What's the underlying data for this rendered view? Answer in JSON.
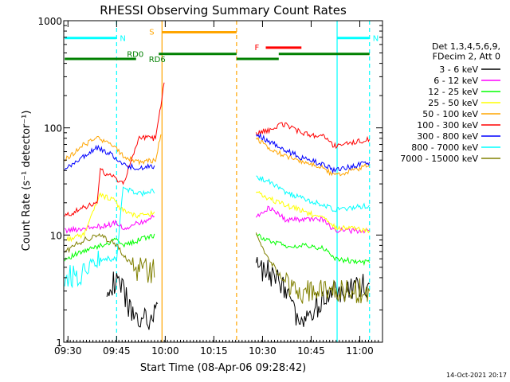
{
  "chart_data": {
    "type": "line",
    "title": "RHESSI Observing Summary Count Rates",
    "xlabel": "Start Time (08-Apr-06 09:28:42)",
    "ylabel": "Count Rate (s⁻¹ detector⁻¹)",
    "yscale": "log",
    "ylim": [
      1,
      1000
    ],
    "xlim": [
      "09:28:42",
      "11:07"
    ],
    "x_ticks": [
      "09:30",
      "09:45",
      "10:00",
      "10:15",
      "10:30",
      "10:45",
      "11:00"
    ],
    "y_ticks": [
      "1",
      "10",
      "100",
      "1000"
    ],
    "legend_position": "right",
    "legend_header": [
      "Det 1,3,4,5,6,9,",
      "FDecim 2, Att 0"
    ],
    "footer": "14-Oct-2021 20:17",
    "data_gap": [
      "10:22",
      "10:28"
    ],
    "series": [
      {
        "name": "3 - 6 keV",
        "color": "#000000",
        "x": [
          "09:42",
          "09:46",
          "09:50",
          "09:55",
          "09:58",
          "10:28",
          "10:32",
          "10:37",
          "10:42",
          "10:49",
          "10:56",
          "11:03"
        ],
        "values": [
          3.5,
          3.5,
          1.8,
          1.5,
          2.0,
          5.0,
          4.5,
          3.0,
          1.3,
          2.8,
          3.0,
          3.5
        ]
      },
      {
        "name": "6 - 12 keV",
        "color": "#ff00ff",
        "x": [
          "09:29",
          "09:40",
          "09:45",
          "09:47",
          "09:52",
          "09:57",
          "10:28",
          "10:32",
          "10:37",
          "10:42",
          "10:49",
          "10:52",
          "11:03"
        ],
        "values": [
          11,
          12,
          13,
          11.5,
          13,
          15,
          15,
          18,
          14,
          14,
          14,
          11,
          11
        ]
      },
      {
        "name": "12 - 25 keV",
        "color": "#00ff00",
        "x": [
          "09:29",
          "09:40",
          "09:45",
          "09:47",
          "09:52",
          "09:57",
          "10:28",
          "10:32",
          "10:37",
          "10:42",
          "10:49",
          "10:52",
          "11:03"
        ],
        "values": [
          6,
          8,
          9,
          8,
          9,
          10,
          10,
          9,
          8,
          8,
          7.5,
          6,
          5.5
        ]
      },
      {
        "name": "25 - 50 keV",
        "color": "#ffff00",
        "x": [
          "09:29",
          "09:35",
          "09:40",
          "09:44",
          "09:47",
          "09:52",
          "09:57",
          "10:28",
          "10:32",
          "10:37",
          "10:42",
          "10:49",
          "10:52",
          "11:03"
        ],
        "values": [
          9,
          10,
          24,
          21,
          17,
          15,
          16,
          25,
          22,
          19,
          17,
          14,
          12,
          11
        ]
      },
      {
        "name": "50 - 100 keV",
        "color": "#ffa500",
        "x": [
          "09:29",
          "09:35",
          "09:39",
          "09:44",
          "09:47",
          "09:52",
          "09:57",
          "09:59",
          "10:28",
          "10:32",
          "10:37",
          "10:42",
          "10:49",
          "10:52",
          "11:03"
        ],
        "values": [
          50,
          70,
          80,
          68,
          55,
          48,
          50,
          100,
          80,
          65,
          55,
          48,
          42,
          36,
          45
        ]
      },
      {
        "name": "100 - 300 keV",
        "color": "#ff0000",
        "x": [
          "09:29",
          "09:35",
          "09:39",
          "09:40",
          "09:44",
          "09:47",
          "09:52",
          "09:57",
          "10:00",
          "10:28",
          "10:32",
          "10:36",
          "10:42",
          "10:49",
          "10:52",
          "11:03"
        ],
        "values": [
          15,
          18,
          20,
          40,
          35,
          30,
          80,
          80,
          300,
          90,
          95,
          110,
          90,
          82,
          68,
          78
        ]
      },
      {
        "name": "300 - 800 keV",
        "color": "#0000ff",
        "x": [
          "09:29",
          "09:35",
          "09:39",
          "09:44",
          "09:47",
          "09:52",
          "09:57",
          "10:28",
          "10:32",
          "10:37",
          "10:42",
          "10:49",
          "10:52",
          "11:03"
        ],
        "values": [
          40,
          55,
          65,
          55,
          45,
          42,
          44,
          88,
          75,
          62,
          53,
          45,
          40,
          48
        ]
      },
      {
        "name": "800 - 7000 keV",
        "color": "#00ffff",
        "x": [
          "09:29",
          "09:35",
          "09:40",
          "09:45",
          "09:47",
          "09:52",
          "09:57",
          "10:28",
          "10:32",
          "10:37",
          "10:42",
          "10:49",
          "10:52",
          "11:03"
        ],
        "values": [
          4,
          4.5,
          6,
          6,
          28,
          24,
          26,
          35,
          32,
          25,
          22,
          19,
          17,
          19
        ]
      },
      {
        "name": "7000 - 15000 keV",
        "color": "#808000",
        "x": [
          "09:29",
          "09:35",
          "09:40",
          "09:45",
          "09:50",
          "09:57",
          "10:28",
          "10:32",
          "10:37",
          "10:42",
          "10:49",
          "10:52",
          "11:03"
        ],
        "values": [
          7,
          9,
          10,
          8,
          5,
          4.5,
          10,
          6,
          3.5,
          3,
          3,
          3,
          3
        ]
      }
    ],
    "markers": [
      {
        "label": "N",
        "color": "#00ffff",
        "from": "09:29",
        "to": "09:45",
        "level": 690
      },
      {
        "label": "N",
        "color": "#00ffff",
        "from": "10:53",
        "to": "11:03",
        "level": 690
      },
      {
        "label": "S",
        "color": "#ffa500",
        "from": "09:59",
        "to": "10:22",
        "level": 780
      },
      {
        "label": "F",
        "color": "#ff0000",
        "from": "10:31",
        "to": "10:42",
        "level": 560
      },
      {
        "label": "RD0",
        "color": "#008000",
        "from": "09:58",
        "to": "10:22",
        "level": 490
      },
      {
        "label": "",
        "color": "#008000",
        "from": "10:35",
        "to": "11:03",
        "level": 490
      },
      {
        "label": "RD6",
        "color": "#008000",
        "from": "09:29",
        "to": "09:51",
        "level": 440
      },
      {
        "label": "",
        "color": "#008000",
        "from": "10:22",
        "to": "10:35",
        "level": 440
      }
    ],
    "vertical_lines": [
      {
        "time": "09:45",
        "color": "#00ffff",
        "style": "dashed"
      },
      {
        "time": "10:53",
        "color": "#00ffff",
        "style": "solid"
      },
      {
        "time": "11:03",
        "color": "#00ffff",
        "style": "dashed"
      },
      {
        "time": "09:59",
        "color": "#ffa500",
        "style": "solid"
      },
      {
        "time": "10:22",
        "color": "#ffa500",
        "style": "dashed"
      }
    ]
  }
}
